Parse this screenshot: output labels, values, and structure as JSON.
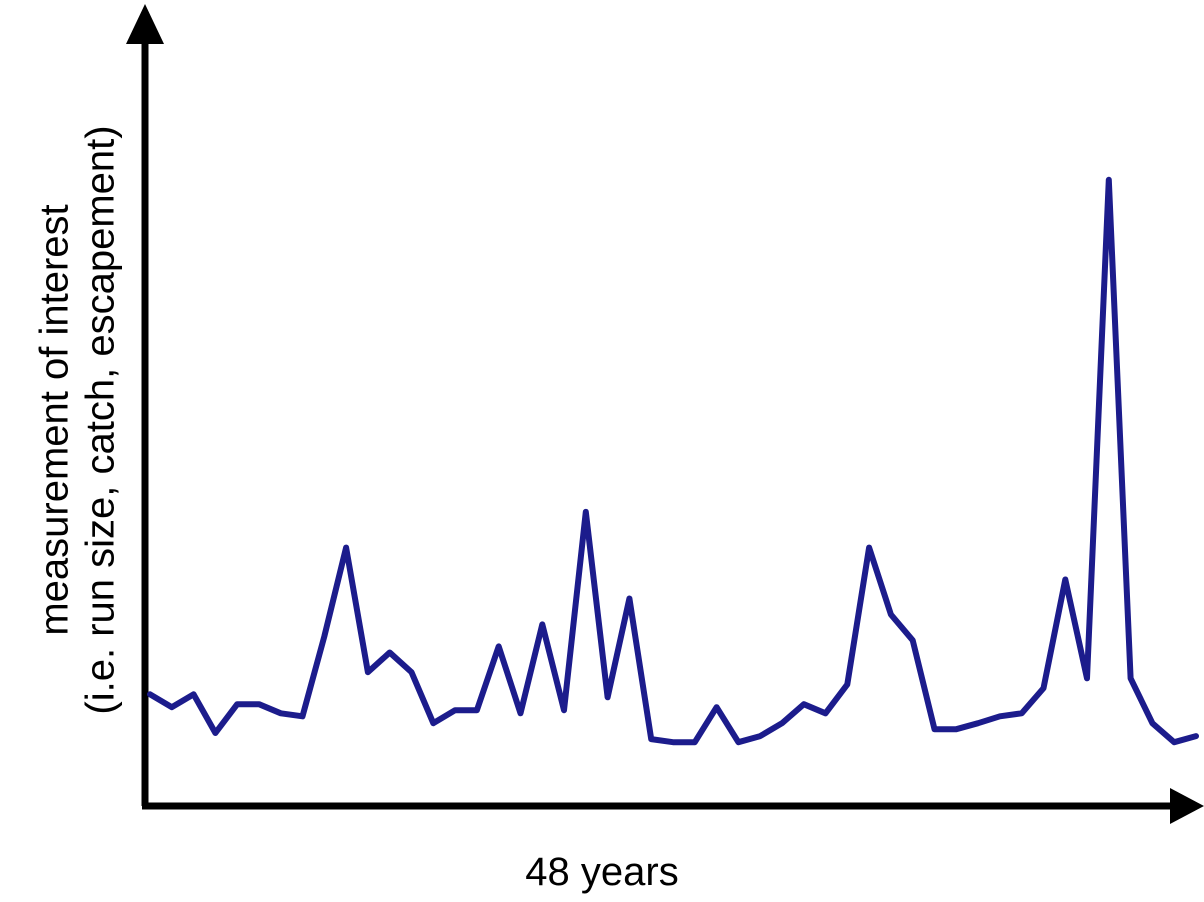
{
  "chart_data": {
    "type": "line",
    "title": "",
    "xlabel": "48 years",
    "ylabel_lines": [
      "measurement of interest",
      "(i.e. run size, catch, escapement)"
    ],
    "line_color": "#1c1c8c",
    "grid": false,
    "xlim": [
      0,
      48
    ],
    "ylim": [
      0,
      100
    ],
    "series": [
      {
        "values": [
          14.7,
          13.0,
          14.7,
          9.6,
          13.4,
          13.4,
          12.2,
          11.8,
          22.3,
          34.0,
          17.6,
          20.2,
          17.6,
          10.9,
          12.6,
          12.6,
          21.0,
          12.2,
          23.9,
          12.6,
          38.7,
          14.3,
          27.3,
          8.8,
          8.4,
          8.4,
          13.0,
          8.4,
          9.2,
          10.9,
          13.4,
          12.2,
          16.0,
          34.0,
          25.2,
          21.8,
          10.1,
          10.1,
          10.9,
          11.8,
          12.2,
          15.5,
          29.8,
          16.8,
          82.4,
          16.8,
          10.9,
          8.4,
          9.2
        ]
      }
    ]
  }
}
